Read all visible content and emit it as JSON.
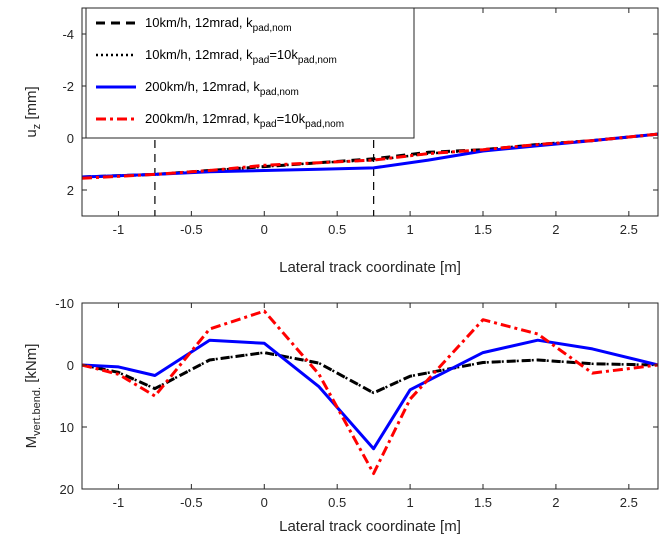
{
  "chart_data": [
    {
      "type": "line",
      "xlabel": "Lateral track coordinate [m]",
      "ylabel": "u",
      "ylabel_sub": "z",
      "ylabel_unit": " [mm]",
      "xlim": [
        -1.25,
        2.7
      ],
      "ylim": [
        -5,
        3
      ],
      "y_reversed": true,
      "xticks": [
        -1,
        -0.5,
        0,
        0.5,
        1,
        1.5,
        2,
        2.5
      ],
      "xtick_labels": [
        "-1",
        "-0.5",
        "0",
        "0.5",
        "1",
        "1.5",
        "2",
        "2.5"
      ],
      "yticks": [
        -4,
        -2,
        0,
        2
      ],
      "ytick_labels": [
        "-4",
        "-2",
        "0",
        "2"
      ],
      "vlines": [
        -0.75,
        0.75
      ],
      "grid": false,
      "legend_position": "top-left",
      "series": [
        {
          "name": "10km/h, 12mrad, k",
          "name_sub": "pad,nom",
          "color": "#000000",
          "style": "dashed",
          "x": [
            -1.25,
            -0.75,
            -0.375,
            0,
            0.375,
            0.75,
            1.125,
            1.5,
            1.875,
            2.25,
            2.7
          ],
          "y": [
            1.5,
            1.4,
            1.25,
            1.1,
            0.95,
            0.8,
            0.55,
            0.45,
            0.25,
            0.1,
            -0.15
          ]
        },
        {
          "name": "10km/h, 12mrad, k",
          "name_sub": "pad",
          "name_tail": "=10k",
          "name_tail_sub": "pad,nom",
          "color": "#000000",
          "style": "dotted",
          "x": [
            -1.25,
            -0.75,
            -0.375,
            0,
            0.375,
            0.75,
            1.125,
            1.5,
            1.875,
            2.25,
            2.7
          ],
          "y": [
            1.5,
            1.4,
            1.25,
            1.1,
            0.95,
            0.85,
            0.6,
            0.45,
            0.25,
            0.1,
            -0.15
          ]
        },
        {
          "name": "200km/h, 12mrad, k",
          "name_sub": "pad,nom",
          "color": "#0000ff",
          "style": "solid",
          "x": [
            -1.25,
            -0.75,
            -0.375,
            0,
            0.375,
            0.75,
            1.125,
            1.5,
            1.875,
            2.25,
            2.7
          ],
          "y": [
            1.5,
            1.4,
            1.3,
            1.25,
            1.2,
            1.15,
            0.85,
            0.5,
            0.3,
            0.1,
            -0.15
          ]
        },
        {
          "name": "200km/h, 12mrad, k",
          "name_sub": "pad",
          "name_tail": "=10k",
          "name_tail_sub": "pad,nom",
          "color": "#ff0000",
          "style": "dashdot",
          "x": [
            -1.25,
            -0.75,
            -0.375,
            0,
            0.375,
            0.75,
            1.125,
            1.5,
            1.875,
            2.25,
            2.7
          ],
          "y": [
            1.55,
            1.4,
            1.25,
            1.05,
            0.95,
            0.85,
            0.6,
            0.45,
            0.25,
            0.1,
            -0.15
          ]
        }
      ]
    },
    {
      "type": "line",
      "xlabel": "Lateral track coordinate [m]",
      "ylabel": "M",
      "ylabel_sub": "vert.bend.",
      "ylabel_unit": " [kNm]",
      "xlim": [
        -1.25,
        2.7
      ],
      "ylim": [
        -10,
        20
      ],
      "y_reversed": true,
      "xticks": [
        -1,
        -0.5,
        0,
        0.5,
        1,
        1.5,
        2,
        2.5
      ],
      "xtick_labels": [
        "-1",
        "-0.5",
        "0",
        "0.5",
        "1",
        "1.5",
        "2",
        "2.5"
      ],
      "yticks": [
        -10,
        0,
        10,
        20
      ],
      "ytick_labels": [
        "-10",
        "0",
        "10",
        "20"
      ],
      "grid": false,
      "series": [
        {
          "name": "10km/h, 12mrad, k pad,nom",
          "color": "#000000",
          "style": "dashed",
          "x": [
            -1.25,
            -1.0,
            -0.75,
            -0.375,
            0,
            0.375,
            0.75,
            1.0,
            1.5,
            1.875,
            2.25,
            2.7
          ],
          "y": [
            0,
            1.2,
            3.8,
            -0.8,
            -2.0,
            -0.3,
            4.5,
            1.8,
            -0.4,
            -0.8,
            -0.2,
            0
          ]
        },
        {
          "name": "10km/h, 12mrad, k pad =10k pad,nom",
          "color": "#000000",
          "style": "dotted",
          "x": [
            -1.25,
            -1.0,
            -0.75,
            -0.375,
            0,
            0.375,
            0.75,
            1.0,
            1.5,
            1.875,
            2.25,
            2.7
          ],
          "y": [
            0,
            1.2,
            3.8,
            -0.8,
            -2.0,
            -0.3,
            4.5,
            1.8,
            -0.4,
            -0.8,
            -0.2,
            0
          ]
        },
        {
          "name": "200km/h, 12mrad, k pad,nom",
          "color": "#0000ff",
          "style": "solid",
          "x": [
            -1.25,
            -1.0,
            -0.75,
            -0.375,
            0,
            0.375,
            0.75,
            1.0,
            1.5,
            1.875,
            2.25,
            2.7
          ],
          "y": [
            0,
            0.3,
            1.7,
            -4.0,
            -3.5,
            3.5,
            13.5,
            4.0,
            -2.0,
            -4.0,
            -2.6,
            0
          ]
        },
        {
          "name": "200km/h, 12mrad, k pad =10k pad,nom",
          "color": "#ff0000",
          "style": "dashdot",
          "x": [
            -1.25,
            -1.0,
            -0.75,
            -0.375,
            0,
            0.375,
            0.75,
            1.0,
            1.5,
            1.875,
            2.25,
            2.7
          ],
          "y": [
            0,
            1.5,
            5.0,
            -5.8,
            -8.7,
            1.5,
            17.5,
            5.5,
            -7.3,
            -5.0,
            1.3,
            0
          ]
        }
      ]
    }
  ]
}
